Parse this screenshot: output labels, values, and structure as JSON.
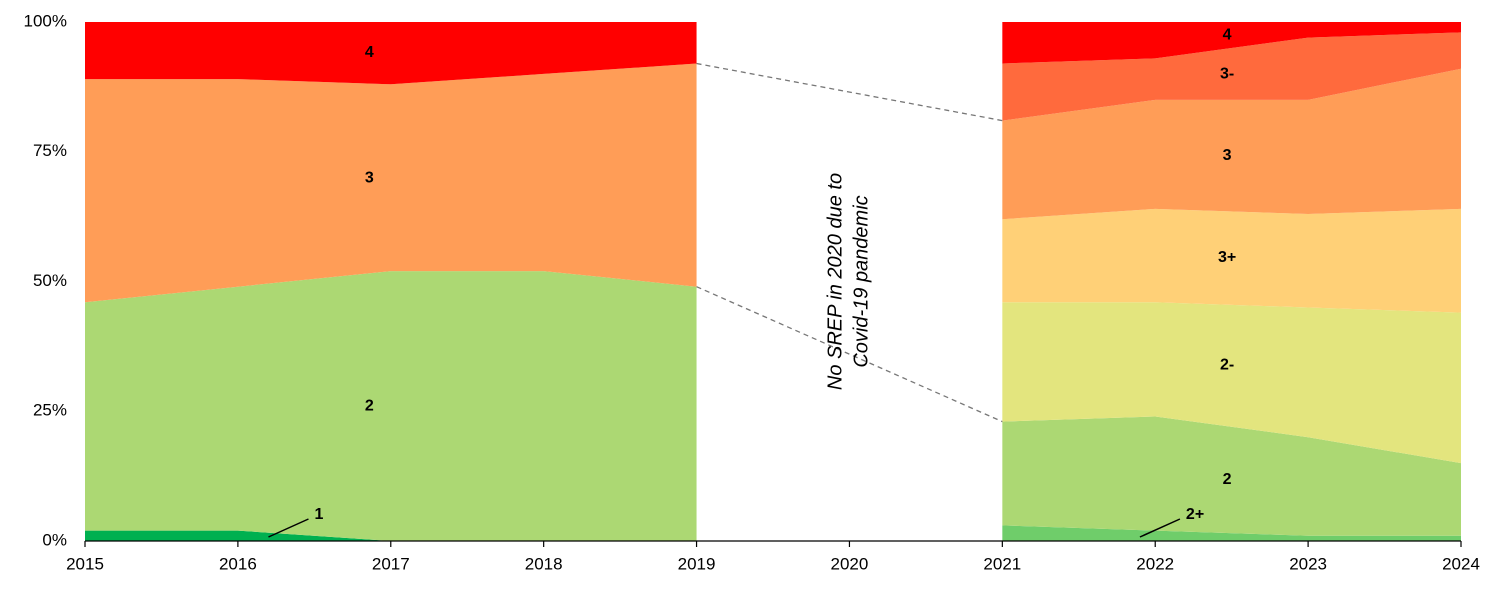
{
  "chart_data": {
    "type": "stacked_area",
    "categories": [
      "2015",
      "2016",
      "2017",
      "2018",
      "2019",
      "2020",
      "2021",
      "2022",
      "2023",
      "2024"
    ],
    "series": [
      {
        "name": "1",
        "color": "#00b050",
        "values": [
          2,
          2,
          0,
          0,
          0,
          null,
          null,
          null,
          null,
          null
        ]
      },
      {
        "name": "2",
        "color": "#acd873",
        "values": [
          44,
          47,
          52,
          52,
          49,
          null,
          null,
          null,
          null,
          null
        ]
      },
      {
        "name": "3",
        "color": "#ff9d57",
        "values": [
          43,
          40,
          36,
          38,
          43,
          null,
          null,
          null,
          null,
          null
        ]
      },
      {
        "name": "4",
        "color": "#ff0000",
        "values": [
          11,
          11,
          12,
          10,
          8,
          null,
          null,
          null,
          null,
          null
        ]
      },
      {
        "name": "2+",
        "color": "#6fcd6a",
        "values": [
          null,
          null,
          null,
          null,
          null,
          null,
          3,
          2,
          1,
          1
        ]
      },
      {
        "name": "2",
        "color": "#acd873",
        "values": [
          null,
          null,
          null,
          null,
          null,
          null,
          20,
          22,
          19,
          14
        ]
      },
      {
        "name": "2-",
        "color": "#e3e57e",
        "values": [
          null,
          null,
          null,
          null,
          null,
          null,
          23,
          22,
          25,
          29
        ]
      },
      {
        "name": "3+",
        "color": "#ffd077",
        "values": [
          null,
          null,
          null,
          null,
          null,
          null,
          16,
          18,
          18,
          20
        ]
      },
      {
        "name": "3",
        "color": "#ff9d57",
        "values": [
          null,
          null,
          null,
          null,
          null,
          null,
          19,
          21,
          22,
          27
        ]
      },
      {
        "name": "3-",
        "color": "#ff6a3d",
        "values": [
          null,
          null,
          null,
          null,
          null,
          null,
          11,
          8,
          12,
          7
        ]
      },
      {
        "name": "4",
        "color": "#ff0000",
        "values": [
          null,
          null,
          null,
          null,
          null,
          null,
          8,
          7,
          3,
          2
        ]
      }
    ],
    "ylim": [
      0,
      100
    ],
    "yticks": [
      {
        "value": 0,
        "label": "0%"
      },
      {
        "value": 25,
        "label": "25%"
      },
      {
        "value": 50,
        "label": "50%"
      },
      {
        "value": 75,
        "label": "75%"
      },
      {
        "value": 100,
        "label": "100%"
      }
    ],
    "annotation": [
      "No SREP in 2020 due to",
      "Covid-19 pandemic"
    ]
  }
}
